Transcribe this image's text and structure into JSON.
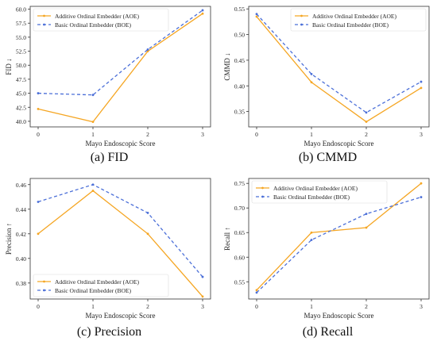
{
  "colors": {
    "aoe": "#f5a623",
    "boe": "#4b6fd8"
  },
  "captions": [
    "(a) FID",
    "(b) CMMD",
    "(c) Precision",
    "(d) Recall"
  ],
  "chart_data": [
    {
      "type": "line",
      "ylabel": "FID ↓",
      "xlabel": "Mayo Endoscopic Score",
      "categories": [
        "0",
        "1",
        "2",
        "3"
      ],
      "ylim": [
        39,
        60.5
      ],
      "yticks": [
        "40.0",
        "42.5",
        "45.0",
        "47.5",
        "50.0",
        "52.5",
        "55.0",
        "57.5",
        "60.0"
      ],
      "legend_position": "top-left",
      "series": [
        {
          "name": "Additive Ordinal Embedder (AOE)",
          "values": [
            42.2,
            39.9,
            52.5,
            59.2
          ]
        },
        {
          "name": "Basic Ordinal Embedder (BOE)",
          "values": [
            45.0,
            44.7,
            52.8,
            59.8
          ]
        }
      ]
    },
    {
      "type": "line",
      "ylabel": "CMMD ↓",
      "xlabel": "Mayo Endoscopic Score",
      "categories": [
        "0",
        "1",
        "2",
        "3"
      ],
      "ylim": [
        0.32,
        0.555
      ],
      "yticks": [
        "0.35",
        "0.40",
        "0.45",
        "0.50",
        "0.55"
      ],
      "legend_position": "top-right",
      "series": [
        {
          "name": "Additive Ordinal Embedder (AOE)",
          "values": [
            0.535,
            0.407,
            0.33,
            0.396
          ]
        },
        {
          "name": "Basic Ordinal Embedder (BOE)",
          "values": [
            0.54,
            0.423,
            0.348,
            0.408
          ]
        }
      ]
    },
    {
      "type": "line",
      "ylabel": "Precision ↑",
      "xlabel": "Mayo Endoscopic Score",
      "categories": [
        "0",
        "1",
        "2",
        "3"
      ],
      "ylim": [
        0.367,
        0.465
      ],
      "yticks": [
        "0.38",
        "0.40",
        "0.42",
        "0.44",
        "0.46"
      ],
      "legend_position": "bottom-left",
      "series": [
        {
          "name": "Additive Ordinal Embedder (AOE)",
          "values": [
            0.42,
            0.455,
            0.42,
            0.369
          ]
        },
        {
          "name": "Basic Ordinal Embedder (BOE)",
          "values": [
            0.446,
            0.46,
            0.437,
            0.385
          ]
        }
      ]
    },
    {
      "type": "line",
      "ylabel": "Recall ↑",
      "xlabel": "Mayo Endoscopic Score",
      "categories": [
        "0",
        "1",
        "2",
        "3"
      ],
      "ylim": [
        0.515,
        0.76
      ],
      "yticks": [
        "0.55",
        "0.60",
        "0.65",
        "0.70",
        "0.75"
      ],
      "legend_position": "top-left",
      "series": [
        {
          "name": "Additive Ordinal Embedder (AOE)",
          "values": [
            0.533,
            0.65,
            0.66,
            0.75
          ]
        },
        {
          "name": "Basic Ordinal Embedder (BOE)",
          "values": [
            0.528,
            0.635,
            0.688,
            0.722
          ]
        }
      ]
    }
  ]
}
